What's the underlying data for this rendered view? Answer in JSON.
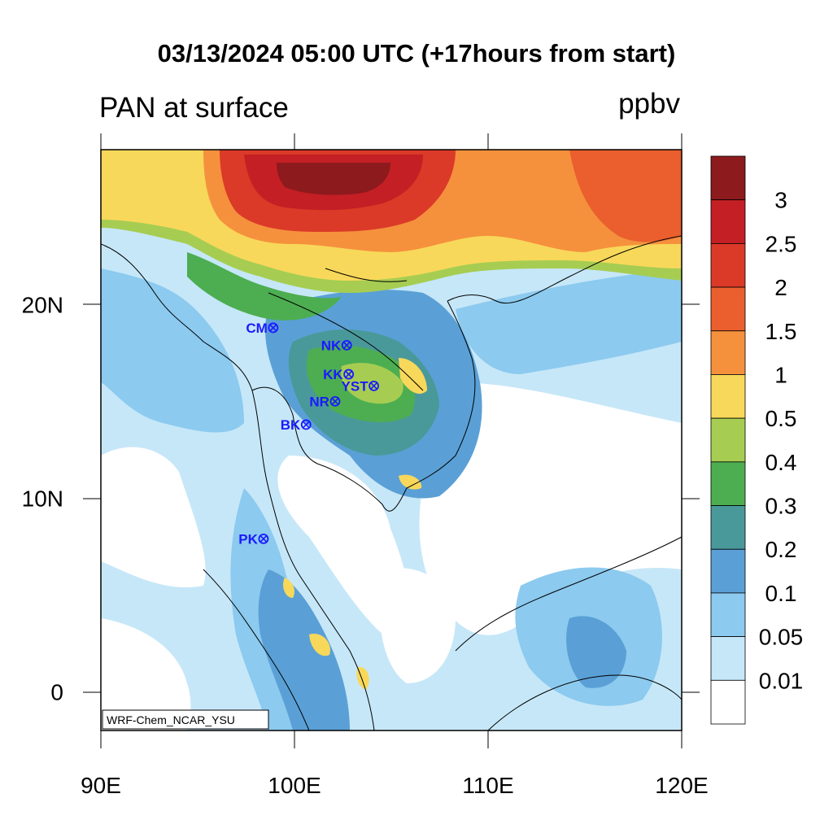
{
  "title": "03/13/2024 05:00 UTC (+17hours from start)",
  "subtitle": "PAN at surface",
  "units": "ppbv",
  "watermark": "WRF-Chem_NCAR_YSU",
  "lon_labels": [
    {
      "text": "90E",
      "lon": 90
    },
    {
      "text": "100E",
      "lon": 100
    },
    {
      "text": "110E",
      "lon": 110
    },
    {
      "text": "120E",
      "lon": 120
    }
  ],
  "lat_labels": [
    {
      "text": "20N",
      "lat": 20
    },
    {
      "text": "10N",
      "lat": 10
    },
    {
      "text": "0",
      "lat": 0
    }
  ],
  "colorbar": {
    "labels": [
      "3",
      "2.5",
      "2",
      "1.5",
      "1",
      "0.5",
      "0.4",
      "0.3",
      "0.2",
      "0.1",
      "0.05",
      "0.01"
    ],
    "colors": [
      "#8d1a1d",
      "#c41f24",
      "#db3a28",
      "#ea5f2d",
      "#f5913d",
      "#f8d85a",
      "#a6cd52",
      "#4cae51",
      "#4a999a",
      "#5aa0d6",
      "#8ccaef",
      "#c6e7f8",
      "#ffffff"
    ]
  },
  "stations": [
    {
      "code": "CM",
      "lon": 98.9,
      "lat": 18.8
    },
    {
      "code": "NK",
      "lon": 102.7,
      "lat": 17.9
    },
    {
      "code": "KK",
      "lon": 102.8,
      "lat": 16.4
    },
    {
      "code": "YST",
      "lon": 104.1,
      "lat": 15.8
    },
    {
      "code": "NR",
      "lon": 102.1,
      "lat": 15.0
    },
    {
      "code": "BK",
      "lon": 100.6,
      "lat": 13.8
    },
    {
      "code": "PK",
      "lon": 98.4,
      "lat": 7.9
    }
  ]
}
